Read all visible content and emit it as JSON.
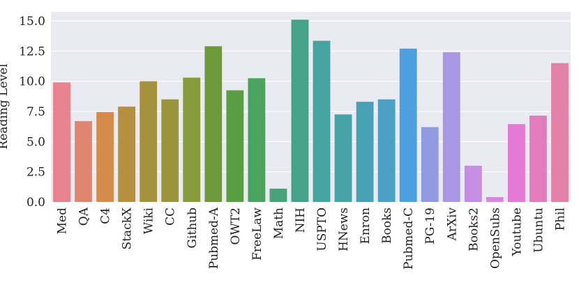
{
  "chart_data": {
    "type": "bar",
    "ylabel": "Reading Level",
    "xlabel": "",
    "ylim": [
      0,
      15.75
    ],
    "yticks": [
      0.0,
      2.5,
      5.0,
      7.5,
      10.0,
      12.5,
      15.0
    ],
    "ytick_labels": [
      "0.0",
      "2.5",
      "5.0",
      "7.5",
      "10.0",
      "12.5",
      "15.0"
    ],
    "grid": true,
    "background": "#eaeaf2",
    "categories": [
      "Med",
      "QA",
      "C4",
      "StackX",
      "Wiki",
      "CC",
      "Github",
      "Pubmed-A",
      "OWT2",
      "FreeLaw",
      "Math",
      "NIH",
      "USPTO",
      "HNews",
      "Enron",
      "Books",
      "Pubmed-C",
      "PG-19",
      "ArXiv",
      "Books2",
      "OpenSubs",
      "Youtube",
      "Ubuntu",
      "Phil"
    ],
    "values": [
      9.9,
      6.7,
      7.45,
      7.9,
      10.0,
      8.5,
      10.3,
      12.9,
      9.25,
      10.25,
      1.1,
      15.1,
      13.35,
      7.25,
      8.3,
      8.5,
      12.7,
      6.2,
      12.4,
      3.0,
      0.4,
      6.45,
      7.15,
      11.5
    ],
    "colors": [
      "#e8828e",
      "#e08670",
      "#d68a4b",
      "#b6903f",
      "#a6923c",
      "#99953b",
      "#889b3c",
      "#6f9a3b",
      "#5a9e43",
      "#4aa35e",
      "#48a378",
      "#45a38b",
      "#45a49d",
      "#46a3a8",
      "#48a2b5",
      "#4aa1c4",
      "#4ba0dd",
      "#8e9be2",
      "#a997e3",
      "#c58ee3",
      "#d885e3",
      "#e37ad4",
      "#e47bbd",
      "#e481a8"
    ]
  }
}
